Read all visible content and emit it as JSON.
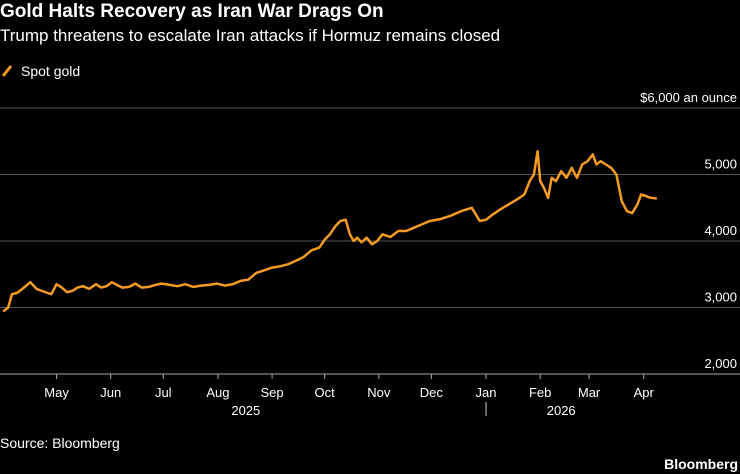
{
  "header": {
    "title": "Gold Halts Recovery as Iran War Drags On",
    "subtitle": "Trump threatens to escalate Iran attacks if Hormuz remains closed"
  },
  "footer": {
    "source": "Source: Bloomberg",
    "brand": "Bloomberg"
  },
  "colors": {
    "background": "#000000",
    "series": "#f59a23",
    "grid": "#555555",
    "text": "#ffffff"
  },
  "chart_data": {
    "type": "line",
    "title": "Gold Halts Recovery as Iran War Drags On",
    "subtitle": "Trump threatens to escalate Iran attacks if Hormuz remains closed",
    "xlabel": "",
    "ylabel": "$6,000 an ounce",
    "ylim": [
      1800,
      6000
    ],
    "yticks": [
      {
        "value": 2000,
        "label": "2,000"
      },
      {
        "value": 3000,
        "label": "3,000"
      },
      {
        "value": 4000,
        "label": "4,000"
      },
      {
        "value": 5000,
        "label": "5,000"
      },
      {
        "value": 6000,
        "label": "$6,000 an ounce"
      }
    ],
    "grid": true,
    "legend_position": "top-left",
    "xlim": [
      0,
      13.05
    ],
    "x_unit": "months since Apr 1, 2025",
    "month_ticks": [
      {
        "label": "May",
        "x": 1.0
      },
      {
        "label": "Jun",
        "x": 2.03
      },
      {
        "label": "Jul",
        "x": 3.03
      },
      {
        "label": "Aug",
        "x": 4.07
      },
      {
        "label": "Sep",
        "x": 5.1
      },
      {
        "label": "Oct",
        "x": 6.1
      },
      {
        "label": "Nov",
        "x": 7.13
      },
      {
        "label": "Dec",
        "x": 8.13
      },
      {
        "label": "Jan",
        "x": 9.17
      },
      {
        "label": "Feb",
        "x": 10.2
      },
      {
        "label": "Mar",
        "x": 11.13
      },
      {
        "label": "Apr",
        "x": 12.17
      }
    ],
    "year_labels": [
      {
        "label": "2025",
        "x": 4.6
      },
      {
        "label": "2026",
        "x": 10.6
      }
    ],
    "year_separator_x": 9.17,
    "series": [
      {
        "name": "Spot gold",
        "x": [
          0.0,
          0.08,
          0.15,
          0.25,
          0.38,
          0.5,
          0.62,
          0.75,
          0.9,
          1.0,
          1.1,
          1.2,
          1.3,
          1.4,
          1.5,
          1.62,
          1.75,
          1.85,
          1.95,
          2.05,
          2.15,
          2.25,
          2.38,
          2.5,
          2.62,
          2.75,
          2.88,
          3.0,
          3.15,
          3.3,
          3.45,
          3.6,
          3.75,
          3.9,
          4.05,
          4.2,
          4.35,
          4.5,
          4.65,
          4.8,
          4.95,
          5.1,
          5.25,
          5.4,
          5.55,
          5.7,
          5.85,
          6.0,
          6.1,
          6.2,
          6.3,
          6.4,
          6.5,
          6.58,
          6.65,
          6.72,
          6.8,
          6.9,
          7.0,
          7.1,
          7.2,
          7.35,
          7.5,
          7.65,
          7.8,
          7.95,
          8.1,
          8.3,
          8.5,
          8.7,
          8.9,
          9.05,
          9.17,
          9.3,
          9.45,
          9.6,
          9.75,
          9.9,
          10.0,
          10.08,
          10.15,
          10.2,
          10.27,
          10.35,
          10.42,
          10.5,
          10.6,
          10.7,
          10.8,
          10.9,
          11.0,
          11.1,
          11.2,
          11.27,
          11.35,
          11.45,
          11.55,
          11.65,
          11.75,
          11.85,
          11.95,
          12.05,
          12.12,
          12.2,
          12.3,
          12.4
        ],
        "values": [
          2950,
          3000,
          3200,
          3220,
          3300,
          3380,
          3280,
          3240,
          3200,
          3350,
          3300,
          3230,
          3250,
          3300,
          3320,
          3280,
          3350,
          3300,
          3320,
          3380,
          3340,
          3300,
          3310,
          3360,
          3300,
          3310,
          3340,
          3360,
          3340,
          3320,
          3350,
          3310,
          3330,
          3340,
          3360,
          3330,
          3350,
          3400,
          3420,
          3520,
          3560,
          3600,
          3620,
          3650,
          3700,
          3760,
          3860,
          3900,
          4020,
          4100,
          4220,
          4300,
          4320,
          4100,
          4000,
          4050,
          3980,
          4050,
          3950,
          4000,
          4100,
          4060,
          4150,
          4150,
          4200,
          4250,
          4300,
          4330,
          4380,
          4450,
          4500,
          4300,
          4320,
          4400,
          4480,
          4550,
          4620,
          4700,
          4900,
          5000,
          5350,
          4900,
          4800,
          4650,
          4950,
          4900,
          5050,
          4950,
          5100,
          4950,
          5150,
          5200,
          5300,
          5150,
          5200,
          5150,
          5100,
          5000,
          4600,
          4450,
          4420,
          4550,
          4700,
          4680,
          4650,
          4640
        ]
      }
    ],
    "annotations": []
  }
}
